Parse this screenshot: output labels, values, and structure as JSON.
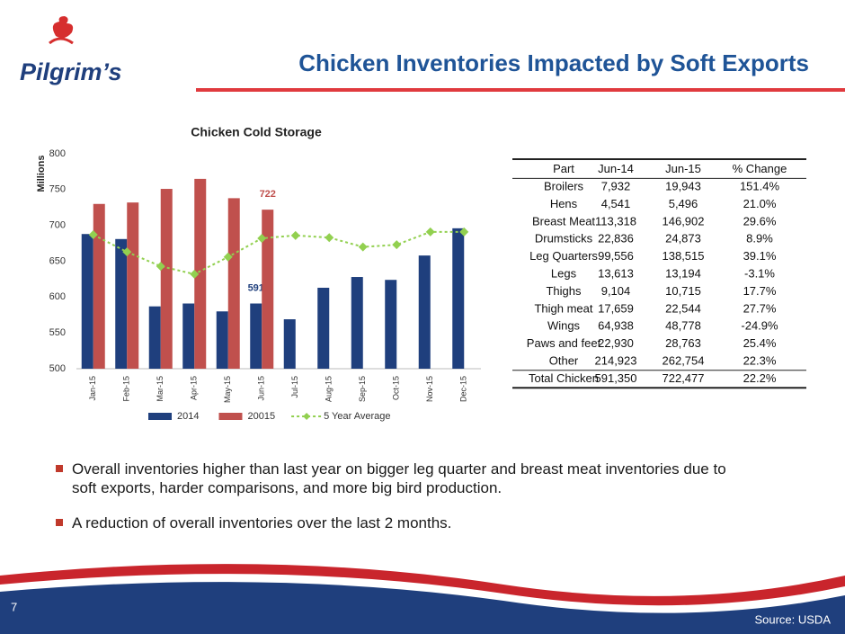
{
  "slide": {
    "logo": "Pilgrim’s",
    "title": "Chicken Inventories Impacted by Soft Exports",
    "bullets": [
      "Overall inventories higher than last year on bigger leg quarter and breast meat inventories due to soft exports, harder comparisons, and more big bird production.",
      "A reduction of overall inventories over the last 2 months."
    ],
    "page_number": "7",
    "source": "Source:  USDA"
  },
  "chart_data": {
    "type": "bar",
    "title": "Chicken Cold Storage",
    "y_label": "Millions",
    "categories": [
      "Jan-15",
      "Feb-15",
      "Mar-15",
      "Apr-15",
      "May-15",
      "Jun-15",
      "Jul-15",
      "Aug-15",
      "Sep-15",
      "Oct-15",
      "Nov-15",
      "Dec-15"
    ],
    "series": [
      {
        "name": "2014",
        "type": "bar",
        "color": "#1f3f7d",
        "values": [
          688,
          681,
          587,
          591,
          580,
          591,
          569,
          613,
          628,
          624,
          658,
          696
        ],
        "labeled_index": 5
      },
      {
        "name": "20015",
        "type": "bar",
        "color": "#c0504d",
        "values": [
          730,
          732,
          751,
          765,
          738,
          722,
          null,
          null,
          null,
          null,
          null,
          null
        ],
        "labeled_index": 5
      },
      {
        "name": "5 Year Average",
        "type": "line",
        "color": "#92d050",
        "values": [
          687,
          663,
          643,
          632,
          656,
          682,
          686,
          683,
          670,
          673,
          691,
          691
        ]
      }
    ],
    "ylim": [
      500,
      800
    ],
    "yticks": [
      500,
      550,
      600,
      650,
      700,
      750,
      800
    ],
    "grid": false,
    "legend": "bottom"
  },
  "table": {
    "header": [
      "Part",
      "Jun-14",
      "Jun-15",
      "% Change"
    ],
    "rows": [
      [
        "Broilers",
        "7,932",
        "19,943",
        "151.4%"
      ],
      [
        "Hens",
        "4,541",
        "5,496",
        "21.0%"
      ],
      [
        "Breast Meat",
        "113,318",
        "146,902",
        "29.6%"
      ],
      [
        "Drumsticks",
        "22,836",
        "24,873",
        "8.9%"
      ],
      [
        "Leg Quarters",
        "99,556",
        "138,515",
        "39.1%"
      ],
      [
        "Legs",
        "13,613",
        "13,194",
        "-3.1%"
      ],
      [
        "Thighs",
        "9,104",
        "10,715",
        "17.7%"
      ],
      [
        "Thigh meat",
        "17,659",
        "22,544",
        "27.7%"
      ],
      [
        "Wings",
        "64,938",
        "48,778",
        "-24.9%"
      ],
      [
        "Paws and feet",
        "22,930",
        "28,763",
        "25.4%"
      ],
      [
        "Other",
        "214,923",
        "262,754",
        "22.3%"
      ]
    ],
    "total": [
      "Total Chicken",
      "591,350",
      "722,477",
      "22.2%"
    ]
  }
}
